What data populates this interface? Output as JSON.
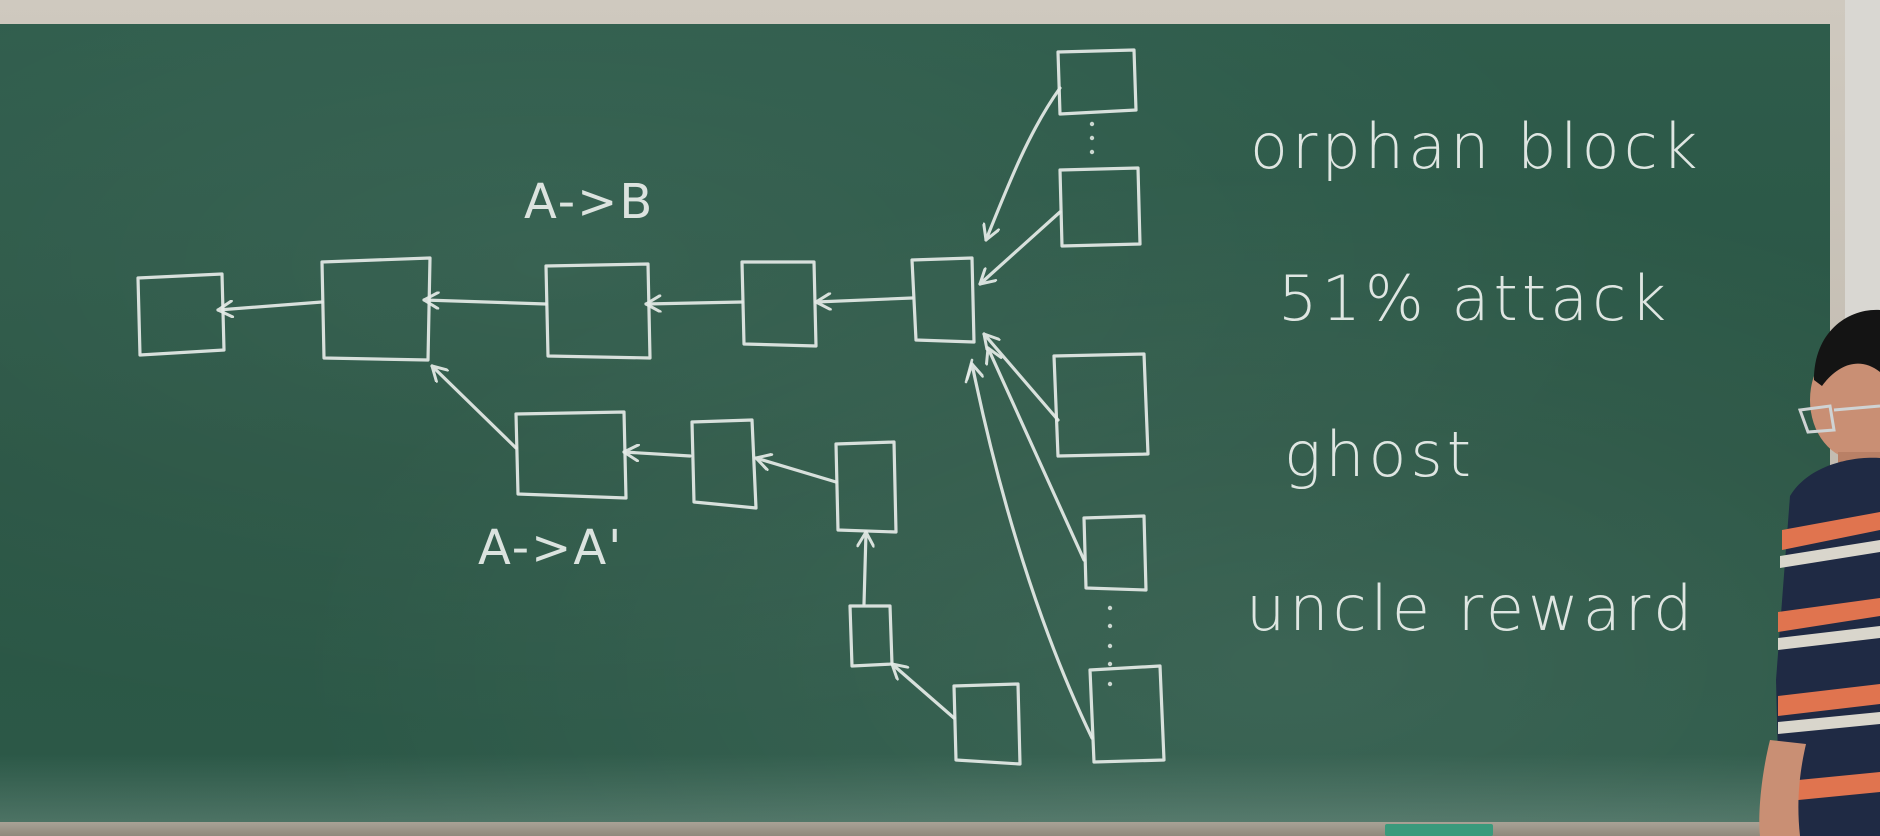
{
  "board": {
    "colors": {
      "chalkboard": "#2c5948",
      "chalk": "#e6ece8",
      "frame": "#c4beb3"
    }
  },
  "diagram": {
    "labels": {
      "top_transaction": "A->B",
      "bottom_transaction": "A->A'"
    }
  },
  "terms": [
    {
      "text": "orphan block"
    },
    {
      "text": "51% attack"
    },
    {
      "text": "ghost"
    },
    {
      "text": "uncle reward"
    }
  ],
  "presenter": {
    "shirt_colors": [
      "#1f2a44",
      "#e0744f",
      "#d9d6cc"
    ]
  }
}
